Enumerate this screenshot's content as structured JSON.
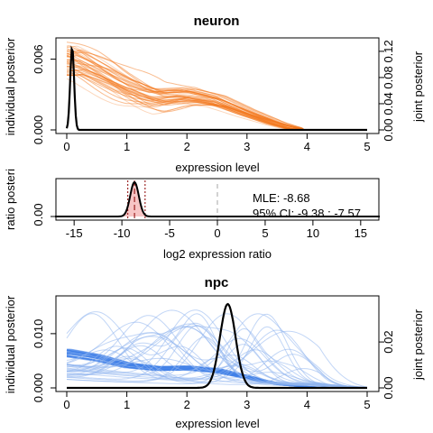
{
  "chart_data": [
    {
      "type": "line",
      "title": "neuron",
      "xlabel": "expression level",
      "ylabel": "individual posterior",
      "ylabel_right": "joint posterior",
      "xlim": [
        0,
        5
      ],
      "ylim": [
        0,
        0.0075
      ],
      "ylim_right": [
        0,
        0.135
      ],
      "x_ticks": [
        "0",
        "1",
        "2",
        "3",
        "4",
        "5"
      ],
      "y_ticks": [
        "0.000",
        "0.006"
      ],
      "y_ticks_right": [
        "0.00",
        "0.04",
        "0.08",
        "0.12"
      ],
      "individual_color": "#f47a20",
      "joint_color": "#000000",
      "grid": false,
      "individual_summary": {
        "x": [
          0,
          0.1,
          0.3,
          0.6,
          1.0,
          1.5,
          2.0,
          2.5,
          3.0,
          3.5,
          3.8,
          4.0,
          5.0
        ],
        "y": [
          0.0057,
          0.0058,
          0.0054,
          0.0047,
          0.0037,
          0.0028,
          0.0029,
          0.0024,
          0.0014,
          0.0005,
          0.0001,
          0.0,
          0.0
        ]
      },
      "joint": {
        "mean": 0.09,
        "sd": 0.032,
        "peak": 0.126
      }
    },
    {
      "type": "area",
      "title": "",
      "xlabel": "log2 expression ratio",
      "ylabel": "ratio posteri",
      "xlim": [
        -17,
        17
      ],
      "ylim": [
        0,
        1
      ],
      "x_ticks": [
        "-15",
        "-10",
        "-5",
        "0",
        "5",
        "10",
        "15"
      ],
      "y_ticks": [
        "0.00"
      ],
      "fill_color": "#f7c5c5",
      "line_color": "#000000",
      "ci_line_color": "#8b0000",
      "zero_line_color": "#bbbbbb",
      "density": {
        "mean": -8.68,
        "sd": 0.45
      },
      "annotations": [
        "MLE: -8.68",
        "95% CI: -9.38 : -7.57"
      ],
      "mle": -8.68,
      "ci": [
        -9.38,
        -7.57
      ]
    },
    {
      "type": "line",
      "title": "npc",
      "xlabel": "expression level",
      "ylabel": "individual posterior",
      "ylabel_right": "joint posterior",
      "xlim": [
        0,
        5
      ],
      "ylim": [
        0,
        0.0163
      ],
      "ylim_right": [
        0,
        0.0385
      ],
      "x_ticks": [
        "0",
        "1",
        "2",
        "3",
        "4",
        "5"
      ],
      "y_ticks": [
        "0.000",
        "0.010"
      ],
      "y_ticks_right": [
        "0.00",
        "0.02"
      ],
      "individual_color": "#3f7fe8",
      "joint_color": "#000000",
      "grid": false,
      "individual_summary": {
        "x": [
          0,
          0.5,
          1.0,
          1.5,
          2.0,
          2.5,
          3.0,
          3.3,
          3.6,
          4.0,
          4.5,
          5.0
        ],
        "y": [
          0.0065,
          0.0056,
          0.0042,
          0.0036,
          0.0037,
          0.0032,
          0.002,
          0.0012,
          0.0006,
          0.0002,
          0.0,
          0.0
        ]
      },
      "joint": {
        "mean": 2.68,
        "sd": 0.13,
        "peak": 0.0365
      }
    }
  ]
}
